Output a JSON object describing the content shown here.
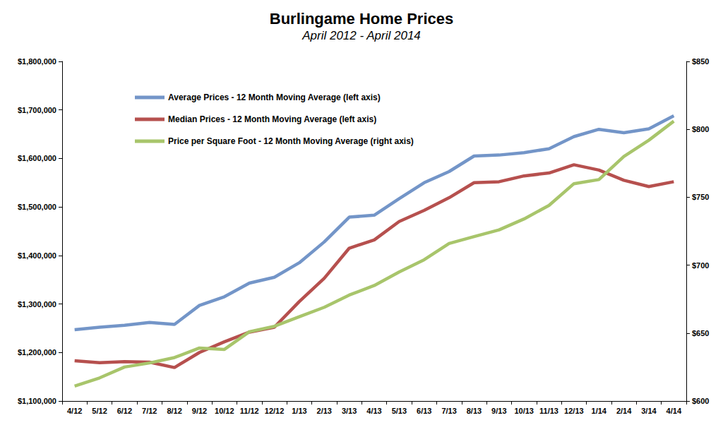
{
  "chart_data": {
    "type": "line",
    "title": "Burlingame Home Prices",
    "subtitle": "April 2012 - April 2014",
    "categories": [
      "4/12",
      "5/12",
      "6/12",
      "7/12",
      "8/12",
      "9/12",
      "10/12",
      "11/12",
      "12/12",
      "1/13",
      "2/13",
      "3/13",
      "4/13",
      "5/13",
      "6/13",
      "7/13",
      "8/13",
      "9/13",
      "10/13",
      "11/13",
      "12/13",
      "1/14",
      "2/14",
      "3/14",
      "4/14"
    ],
    "series": [
      {
        "name": "Average Prices - 12 Month Moving Average (left axis)",
        "color": "#7395c8",
        "values": [
          1247000,
          1252000,
          1256000,
          1262000,
          1258000,
          1297000,
          1315000,
          1343000,
          1355000,
          1385000,
          1428000,
          1479000,
          1483000,
          1517000,
          1550000,
          1573000,
          1605000,
          1607000,
          1612000,
          1620000,
          1645000,
          1660000,
          1653000,
          1661000,
          1688000
        ]
      },
      {
        "name": "Median Prices - 12 Month Moving Average (left axis)",
        "color": "#b6504e",
        "values": [
          1183000,
          1179000,
          1181000,
          1180000,
          1169000,
          1200000,
          1222000,
          1242000,
          1252000,
          1305000,
          1353000,
          1415000,
          1432000,
          1470000,
          1493000,
          1519000,
          1550000,
          1552000,
          1564000,
          1570000,
          1587000,
          1576000,
          1555000,
          1542000,
          1552000
        ]
      },
      {
        "name": "Price per Square Foot - 12 Month Moving Average (right axis)",
        "color": "#a8c56b",
        "axis": "y2",
        "values": [
          611,
          617,
          625,
          628,
          632,
          639,
          638,
          651,
          655,
          662,
          669,
          678,
          685,
          695,
          704,
          716,
          721,
          726,
          734,
          744,
          760,
          763,
          780,
          792,
          806
        ]
      }
    ],
    "ylim": [
      1100000,
      1800000
    ],
    "yticks": [
      {
        "value": 1100000,
        "label": "$1,100,000"
      },
      {
        "value": 1200000,
        "label": "$1,200,000"
      },
      {
        "value": 1300000,
        "label": "$1,300,000"
      },
      {
        "value": 1400000,
        "label": "$1,400,000"
      },
      {
        "value": 1500000,
        "label": "$1,500,000"
      },
      {
        "value": 1600000,
        "label": "$1,600,000"
      },
      {
        "value": 1700000,
        "label": "$1,700,000"
      },
      {
        "value": 1800000,
        "label": "$1,800,000"
      }
    ],
    "y2lim": [
      600,
      850
    ],
    "y2ticks": [
      {
        "value": 600,
        "label": "$600"
      },
      {
        "value": 650,
        "label": "$650"
      },
      {
        "value": 700,
        "label": "$700"
      },
      {
        "value": 750,
        "label": "$750"
      },
      {
        "value": 800,
        "label": "$800"
      },
      {
        "value": 850,
        "label": "$850"
      }
    ],
    "grid": false,
    "legend": "upper left"
  }
}
